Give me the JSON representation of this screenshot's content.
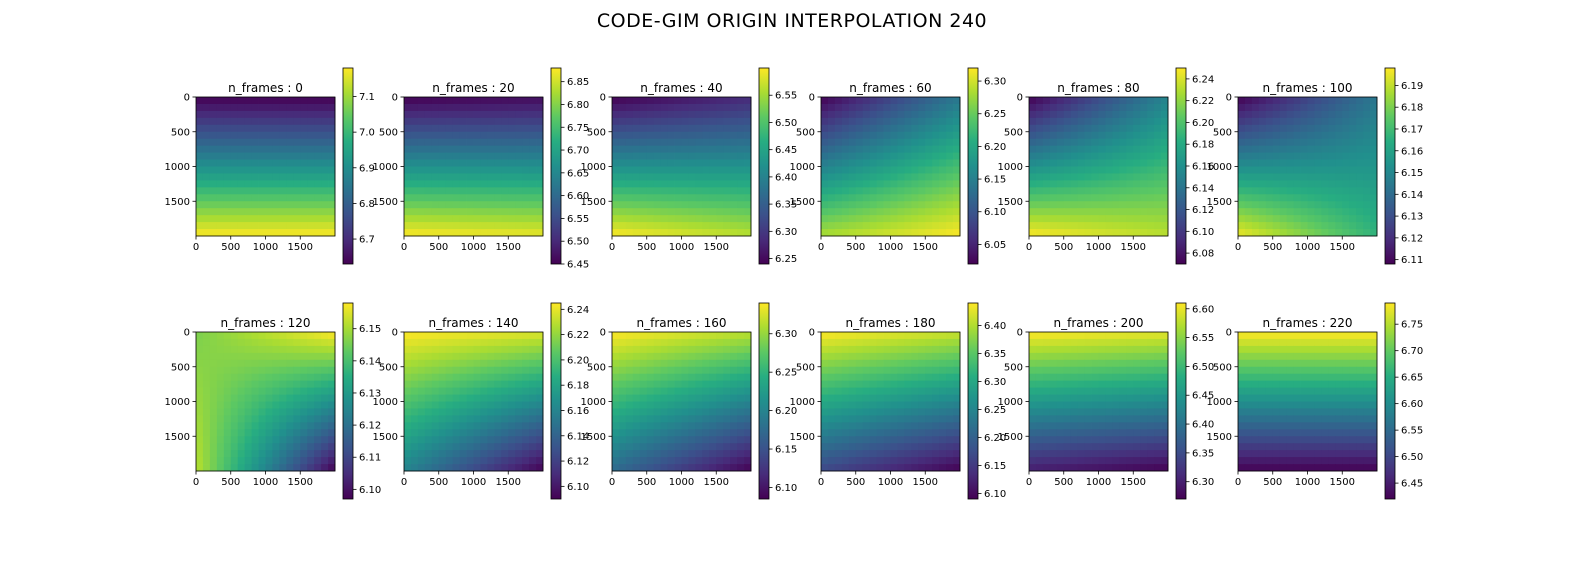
{
  "title": "CODE-GIM ORIGIN INTERPOLATION 240",
  "chart_data": {
    "type": "heatmap",
    "colormap": "viridis",
    "grid": false,
    "image_extent": {
      "x": [
        0,
        2000
      ],
      "y": [
        0,
        2000
      ]
    },
    "x_ticks": [
      0,
      500,
      1000,
      1500
    ],
    "y_ticks": [
      0,
      500,
      1000,
      1500
    ],
    "panels": [
      {
        "title": "n_frames : 0",
        "n": 0,
        "vmin": 6.63,
        "vmax": 7.18,
        "cb_ticks": [
          6.7,
          6.8,
          6.9,
          7.0,
          7.1
        ],
        "corners": {
          "tl": 0.0,
          "tr": 0.0,
          "bl": 1.0,
          "br": 1.0
        }
      },
      {
        "title": "n_frames : 20",
        "n": 20,
        "vmin": 6.45,
        "vmax": 6.88,
        "cb_ticks": [
          6.45,
          6.5,
          6.55,
          6.6,
          6.65,
          6.7,
          6.75,
          6.8,
          6.85
        ],
        "corners": {
          "tl": 0.0,
          "tr": 0.03,
          "bl": 1.0,
          "br": 0.97
        }
      },
      {
        "title": "n_frames : 40",
        "n": 40,
        "vmin": 6.24,
        "vmax": 6.6,
        "cb_ticks": [
          6.25,
          6.3,
          6.35,
          6.4,
          6.45,
          6.5,
          6.55
        ],
        "corners": {
          "tl": 0.0,
          "tr": 0.12,
          "bl": 1.0,
          "br": 0.9
        }
      },
      {
        "title": "n_frames : 60",
        "n": 60,
        "vmin": 6.02,
        "vmax": 6.32,
        "cb_ticks": [
          6.05,
          6.1,
          6.15,
          6.2,
          6.25,
          6.3
        ],
        "corners": {
          "tl": 0.0,
          "tr": 0.4,
          "bl": 0.88,
          "br": 1.0
        }
      },
      {
        "title": "n_frames : 80",
        "n": 80,
        "vmin": 6.07,
        "vmax": 6.25,
        "cb_ticks": [
          6.08,
          6.1,
          6.12,
          6.14,
          6.16,
          6.18,
          6.2,
          6.22,
          6.24
        ],
        "corners": {
          "tl": 0.0,
          "tr": 0.45,
          "bl": 1.0,
          "br": 0.9
        }
      },
      {
        "title": "n_frames : 100",
        "n": 100,
        "vmin": 6.108,
        "vmax": 6.198,
        "cb_ticks": [
          6.11,
          6.12,
          6.13,
          6.14,
          6.15,
          6.16,
          6.17,
          6.18,
          6.19
        ],
        "corners": {
          "tl": 0.0,
          "tr": 0.4,
          "bl": 0.98,
          "br": 0.65
        }
      },
      {
        "title": "n_frames : 120",
        "n": 120,
        "vmin": 6.097,
        "vmax": 6.158,
        "cb_ticks": [
          6.1,
          6.11,
          6.12,
          6.13,
          6.14,
          6.15
        ],
        "corners": {
          "tl": 0.8,
          "tr": 1.0,
          "bl": 0.9,
          "br": 0.0
        }
      },
      {
        "title": "n_frames : 140",
        "n": 140,
        "vmin": 6.09,
        "vmax": 6.245,
        "cb_ticks": [
          6.1,
          6.12,
          6.14,
          6.16,
          6.18,
          6.2,
          6.22,
          6.24
        ],
        "corners": {
          "tl": 1.0,
          "tr": 0.95,
          "bl": 0.45,
          "br": 0.0
        }
      },
      {
        "title": "n_frames : 160",
        "n": 160,
        "vmin": 6.085,
        "vmax": 6.34,
        "cb_ticks": [
          6.1,
          6.15,
          6.2,
          6.25,
          6.3
        ],
        "corners": {
          "tl": 1.0,
          "tr": 0.9,
          "bl": 0.35,
          "br": 0.0
        }
      },
      {
        "title": "n_frames : 180",
        "n": 180,
        "vmin": 6.09,
        "vmax": 6.44,
        "cb_ticks": [
          6.1,
          6.15,
          6.2,
          6.25,
          6.3,
          6.35,
          6.4
        ],
        "corners": {
          "tl": 1.0,
          "tr": 0.92,
          "bl": 0.22,
          "br": 0.0
        }
      },
      {
        "title": "n_frames : 200",
        "n": 200,
        "vmin": 6.27,
        "vmax": 6.61,
        "cb_ticks": [
          6.3,
          6.35,
          6.4,
          6.45,
          6.5,
          6.55,
          6.6
        ],
        "corners": {
          "tl": 1.0,
          "tr": 0.96,
          "bl": 0.08,
          "br": 0.0
        }
      },
      {
        "title": "n_frames : 220",
        "n": 220,
        "vmin": 6.42,
        "vmax": 6.79,
        "cb_ticks": [
          6.45,
          6.5,
          6.55,
          6.6,
          6.65,
          6.7,
          6.75
        ],
        "corners": {
          "tl": 1.0,
          "tr": 1.0,
          "bl": 0.0,
          "br": 0.0
        }
      }
    ]
  }
}
